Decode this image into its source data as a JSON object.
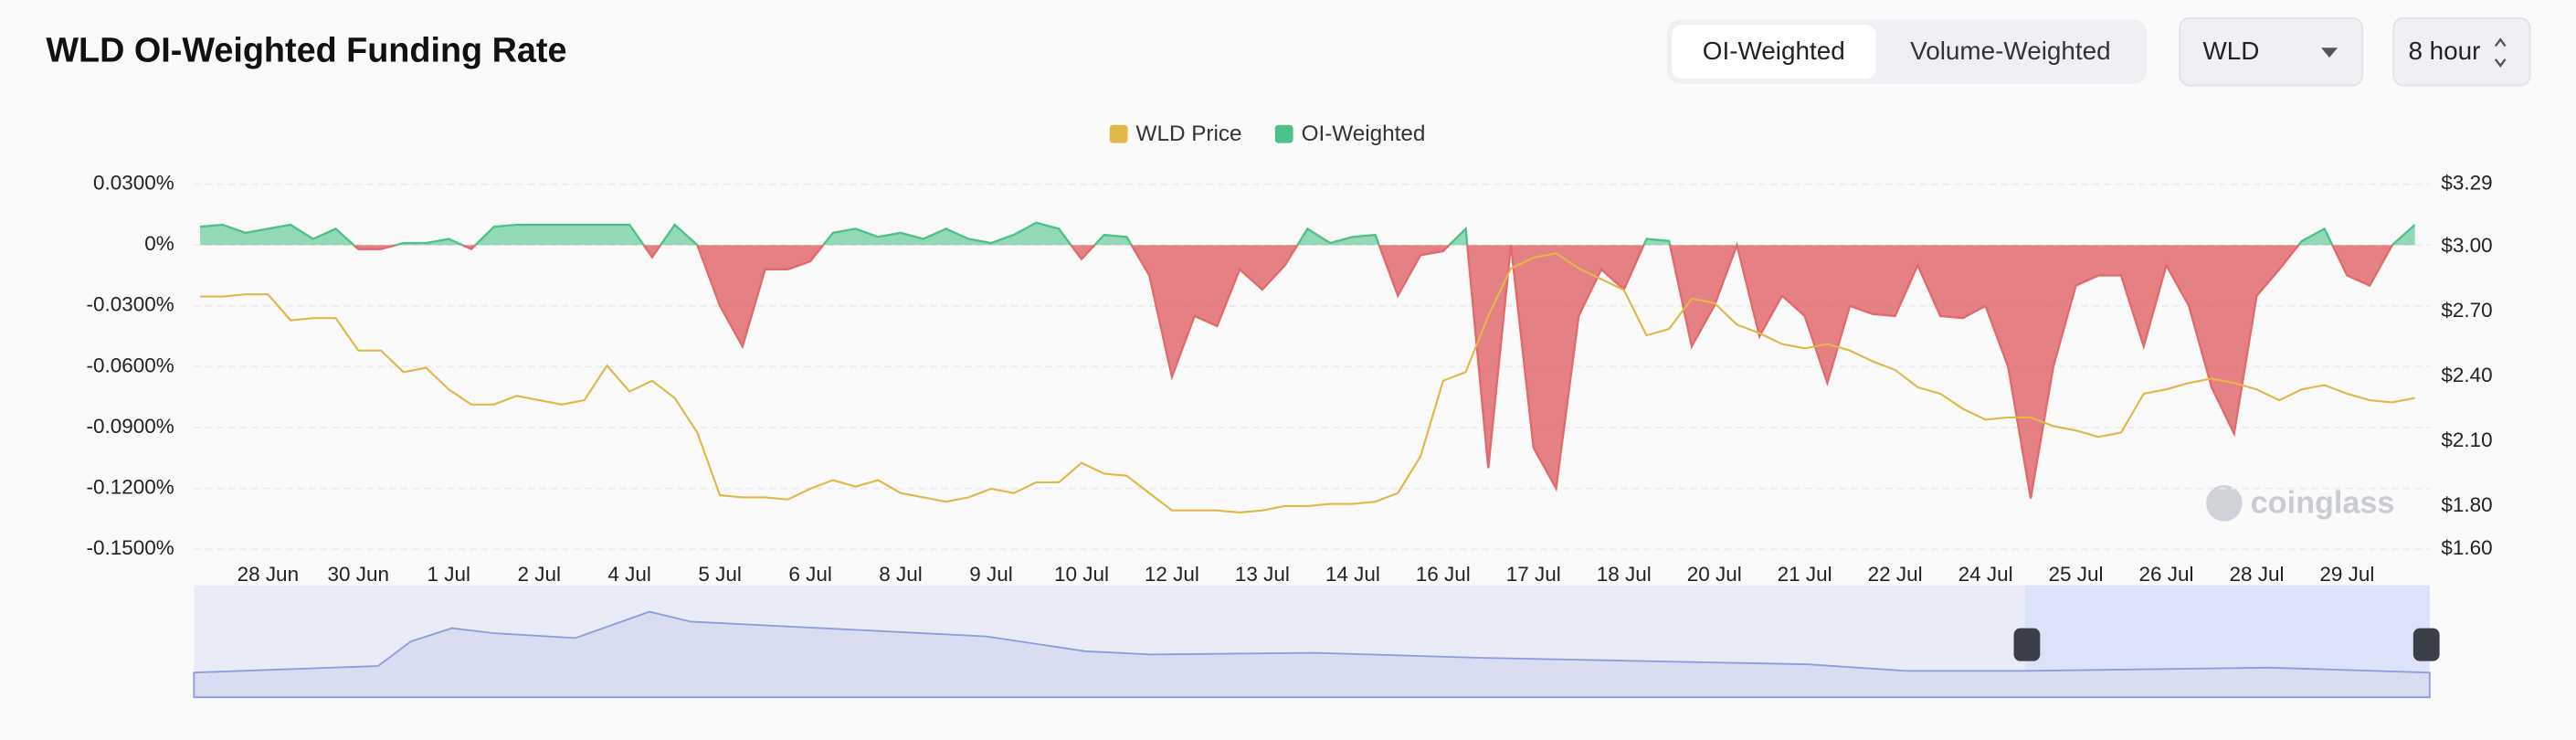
{
  "header": {
    "title": "WLD OI-Weighted Funding Rate"
  },
  "controls": {
    "tabs": [
      "OI-Weighted",
      "Volume-Weighted"
    ],
    "symbol": "WLD",
    "interval": "8 hour"
  },
  "watermark": "coinglass",
  "chart_data": {
    "type": "area",
    "categories": [
      null,
      null,
      null,
      "28 Jun",
      null,
      null,
      null,
      "30 Jun",
      null,
      null,
      null,
      "1 Jul",
      null,
      null,
      null,
      "2 Jul",
      null,
      null,
      null,
      "4 Jul",
      null,
      null,
      null,
      "5 Jul",
      null,
      null,
      null,
      "6 Jul",
      null,
      null,
      null,
      "8 Jul",
      null,
      null,
      null,
      "9 Jul",
      null,
      null,
      null,
      "10 Jul",
      null,
      null,
      null,
      "12 Jul",
      null,
      null,
      null,
      "13 Jul",
      null,
      null,
      null,
      "14 Jul",
      null,
      null,
      null,
      "16 Jul",
      null,
      null,
      null,
      "17 Jul",
      null,
      null,
      null,
      "18 Jul",
      null,
      null,
      null,
      "20 Jul",
      null,
      null,
      null,
      "21 Jul",
      null,
      null,
      null,
      "22 Jul",
      null,
      null,
      null,
      "24 Jul",
      null,
      null,
      null,
      "25 Jul",
      null,
      null,
      null,
      "26 Jul",
      null,
      null,
      null,
      "28 Jul",
      null,
      null,
      null,
      "29 Jul",
      null,
      null,
      null
    ],
    "series": [
      {
        "name": "WLD Price",
        "type": "line",
        "axis": "y2",
        "color": "#e3b84b",
        "values": [
          2.77,
          2.77,
          2.78,
          2.78,
          2.66,
          2.67,
          2.67,
          2.52,
          2.52,
          2.42,
          2.44,
          2.34,
          2.27,
          2.27,
          2.31,
          2.29,
          2.27,
          2.29,
          2.45,
          2.33,
          2.38,
          2.3,
          2.14,
          1.85,
          1.84,
          1.84,
          1.83,
          1.88,
          1.92,
          1.89,
          1.92,
          1.86,
          1.84,
          1.82,
          1.84,
          1.88,
          1.86,
          1.91,
          1.91,
          2.0,
          1.95,
          1.94,
          1.86,
          1.78,
          1.78,
          1.78,
          1.77,
          1.78,
          1.8,
          1.8,
          1.81,
          1.81,
          1.82,
          1.86,
          2.03,
          2.38,
          2.42,
          2.68,
          2.9,
          2.95,
          2.97,
          2.9,
          2.85,
          2.8,
          2.59,
          2.62,
          2.76,
          2.74,
          2.64,
          2.6,
          2.55,
          2.53,
          2.55,
          2.52,
          2.47,
          2.43,
          2.35,
          2.32,
          2.25,
          2.2,
          2.21,
          2.21,
          2.17,
          2.15,
          2.12,
          2.14,
          2.32,
          2.34,
          2.37,
          2.39,
          2.37,
          2.34,
          2.29,
          2.34,
          2.36,
          2.32,
          2.29,
          2.28,
          2.3
        ]
      },
      {
        "name": "OI-Weighted",
        "type": "area",
        "axis": "y",
        "color": "#4ec18a",
        "negative_color": "#e06a6e",
        "values": [
          0.009,
          0.01,
          0.006,
          0.008,
          0.01,
          0.003,
          0.008,
          -0.002,
          -0.002,
          0.001,
          0.001,
          0.003,
          -0.002,
          0.009,
          0.01,
          0.01,
          0.01,
          0.01,
          0.01,
          0.01,
          -0.006,
          0.01,
          0.0,
          -0.03,
          -0.05,
          -0.012,
          -0.012,
          -0.008,
          0.006,
          0.008,
          0.004,
          0.006,
          0.003,
          0.008,
          0.003,
          0.001,
          0.005,
          0.011,
          0.008,
          -0.007,
          0.005,
          0.004,
          -0.015,
          -0.065,
          -0.035,
          -0.04,
          -0.012,
          -0.022,
          -0.01,
          0.008,
          0.001,
          0.004,
          0.005,
          -0.025,
          -0.005,
          -0.003,
          0.008,
          -0.11,
          0.0,
          -0.1,
          -0.12,
          -0.035,
          -0.012,
          -0.022,
          0.003,
          0.002,
          -0.05,
          -0.03,
          0.0,
          -0.045,
          -0.025,
          -0.035,
          -0.068,
          -0.03,
          -0.034,
          -0.035,
          -0.01,
          -0.035,
          -0.036,
          -0.03,
          -0.06,
          -0.125,
          -0.06,
          -0.02,
          -0.015,
          -0.015,
          -0.05,
          -0.01,
          -0.03,
          -0.07,
          -0.093,
          -0.025,
          -0.012,
          0.002,
          0.008,
          -0.015,
          -0.02,
          0.0,
          0.01
        ]
      }
    ],
    "ylim": [
      -0.15,
      0.03
    ],
    "yticks": [
      {
        "value": 0.03,
        "label": "0.0300%"
      },
      {
        "value": 0,
        "label": "0%"
      },
      {
        "value": -0.03,
        "label": "-0.0300%"
      },
      {
        "value": -0.06,
        "label": "-0.0600%"
      },
      {
        "value": -0.09,
        "label": "-0.0900%"
      },
      {
        "value": -0.12,
        "label": "-0.1200%"
      },
      {
        "value": -0.15,
        "label": "-0.1500%"
      }
    ],
    "y2lim": [
      1.6,
      3.29
    ],
    "y2ticks": [
      {
        "value": 3.29,
        "label": "$3.29"
      },
      {
        "value": 3.0,
        "label": "$3.00"
      },
      {
        "value": 2.7,
        "label": "$2.70"
      },
      {
        "value": 2.4,
        "label": "$2.40"
      },
      {
        "value": 2.1,
        "label": "$2.10"
      },
      {
        "value": 1.8,
        "label": "$1.80"
      },
      {
        "value": 1.6,
        "label": "$1.60"
      }
    ],
    "grid": true,
    "legend": "top"
  }
}
